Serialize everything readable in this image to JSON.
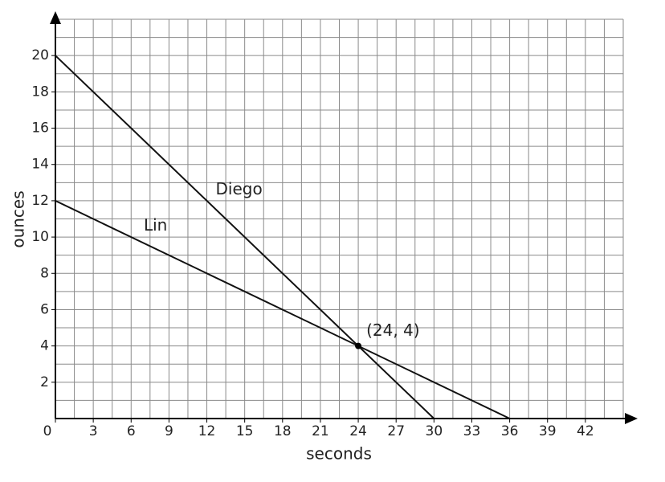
{
  "chart_data": {
    "type": "line",
    "xlabel": "seconds",
    "ylabel": "ounces",
    "xlim": [
      0,
      45
    ],
    "ylim": [
      0,
      22
    ],
    "xticks": [
      0,
      3,
      6,
      9,
      12,
      15,
      18,
      21,
      24,
      27,
      30,
      33,
      36,
      39,
      42
    ],
    "yticks": [
      2,
      4,
      6,
      8,
      10,
      12,
      14,
      16,
      18,
      20
    ],
    "xgrid": [
      1.5,
      3,
      4.5,
      6,
      7.5,
      9,
      10.5,
      12,
      13.5,
      15,
      16.5,
      18,
      19.5,
      21,
      22.5,
      24,
      25.5,
      27,
      28.5,
      30,
      31.5,
      33,
      34.5,
      36,
      37.5,
      39,
      40.5,
      42,
      43.5,
      45
    ],
    "ygrid": [
      1,
      2,
      3,
      4,
      5,
      6,
      7,
      8,
      9,
      10,
      11,
      12,
      13,
      14,
      15,
      16,
      17,
      18,
      19,
      20,
      21,
      22
    ],
    "grid": true,
    "series": [
      {
        "name": "Diego",
        "color": "#111111",
        "x": [
          0,
          30
        ],
        "values": [
          20,
          0
        ]
      },
      {
        "name": "Lin",
        "color": "#111111",
        "x": [
          0,
          36
        ],
        "values": [
          12,
          0
        ]
      }
    ],
    "point": {
      "x": 24,
      "y": 4,
      "label": "(24, 4)"
    }
  }
}
